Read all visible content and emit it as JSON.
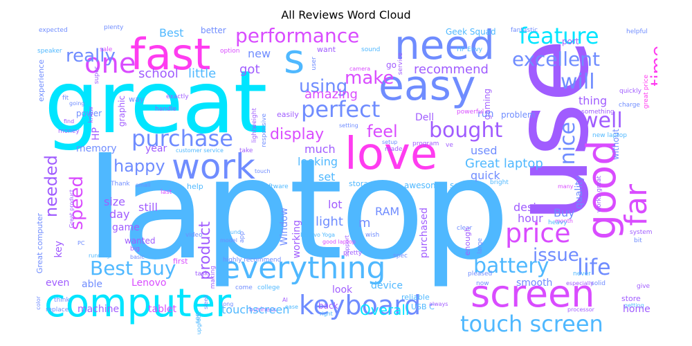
{
  "title": "All Reviews Word Cloud",
  "palette": [
    "#00e5ff",
    "#4fb8ff",
    "#6f8cff",
    "#a05cff",
    "#d94cff",
    "#ff3cf0"
  ],
  "words": {
    "laptop": "laptop",
    "great": "great",
    "use": "use",
    "computer": "computer",
    "love": "love",
    "need": "need",
    "easy": "easy",
    "fast": "fast",
    "work": "work",
    "screen": "screen",
    "good": "good",
    "everything": "everything",
    "keyboard": "keyboard",
    "touch_screen": "touch screen",
    "s": "s",
    "one": "one",
    "far": "far",
    "perfect": "perfect",
    "purchase": "purchase",
    "performance": "performance",
    "feature": "feature",
    "excellent": "excellent",
    "price": "price",
    "Best_Buy": "Best Buy",
    "battery": "battery",
    "life": "life",
    "bought": "bought",
    "well": "well",
    "time": "time",
    "nice": "nice",
    "will": "will",
    "really": "really",
    "make": "make",
    "using": "using",
    "happy": "happy",
    "speed": "speed",
    "needed": "needed",
    "display": "display",
    "issue": "issue",
    "Great_laptop": "Great laptop",
    "product": "product",
    "feel": "feel",
    "amazing": "amazing",
    "recommend": "recommend",
    "school": "school",
    "little": "little",
    "got": "got",
    "new": "new",
    "Best": "Best",
    "better": "better",
    "Geek_Squad": "Geek Squad",
    "fantastic": "fantastic",
    "helpful": "helpful",
    "port": "port",
    "expected": "expected",
    "plenty": "plenty",
    "speaker": "speaker",
    "sale": "sale",
    "option": "option",
    "sound": "sound",
    "camera": "camera",
    "service": "service",
    "HP_Envy": "HP Envy",
    "great_price": "great price",
    "want": "want",
    "user": "user",
    "go": "go",
    "thing": "thing",
    "gaming": "gaming",
    "quickly": "quickly",
    "charge": "charge",
    "something": "something",
    "experience": "experience",
    "super": "super",
    "fit": "fit",
    "going": "going",
    "power": "power",
    "way": "way",
    "handle": "handle",
    "exactly": "exactly",
    "graphic": "graphic",
    "Dell": "Dell",
    "run": "run",
    "problem": "problem",
    "powerful": "powerful",
    "without": "without",
    "know": "know",
    "find": "find",
    "money": "money",
    "lightweight": "lightweight",
    "easily": "easily",
    "responsive": "responsive",
    "setting": "setting",
    "setup": "setup",
    "program": "program",
    "made": "made",
    "ve": "ve",
    "new_laptop": "new laptop",
    "memory": "memory",
    "HP": "HP",
    "year": "year",
    "customer_service": "customer service",
    "take": "take",
    "much": "much",
    "used": "used",
    "quality": "quality",
    "looking": "looking",
    "works_great": "works great",
    "many": "many",
    "quick": "quick",
    "set": "set",
    "touch": "touch",
    "storage": "storage",
    "awesome": "awesome",
    "seem": "seem",
    "bright": "bright",
    "Thank": "Thank",
    "small": "small",
    "last": "last",
    "help": "help",
    "software": "software",
    "Great_product": "Great product",
    "size": "size",
    "day": "day",
    "still": "still",
    "Window": "Window",
    "working": "working",
    "light": "light",
    "lot": "lot",
    "RAM": "RAM",
    "m": "m",
    "design": "design",
    "purchased": "purchased",
    "Buy": "Buy",
    "hour": "hour",
    "Great_computer": "Great computer",
    "game": "game",
    "wanted": "wanted",
    "key": "key",
    "around": "around",
    "model": "model",
    "app": "app",
    "support": "support",
    "video": "video",
    "Lenovo_Yoga": "Lenovo Yoga",
    "good_laptop": "good laptop",
    "wish": "wish",
    "clear": "clear",
    "enough": "enough",
    "month": "month",
    "heavy": "heavy",
    "system": "system",
    "bit": "bit",
    "large": "large",
    "PC": "PC",
    "big": "big",
    "running": "running",
    "basic": "basic",
    "first": "first",
    "highly_recommend": "highly recommend",
    "pretty": "pretty",
    "spec": "spec",
    "even": "even",
    "able": "able",
    "Lenovo": "Lenovo",
    "task": "task",
    "making": "making",
    "look": "look",
    "device": "device",
    "smooth": "smooth",
    "solid": "solid",
    "never": "never",
    "especially": "especially",
    "give": "give",
    "pleased": "pleased",
    "come": "come",
    "college": "college",
    "reliable": "reliable",
    "USB_C": "USB C",
    "now": "now",
    "store": "store",
    "getting": "getting",
    "think": "think",
    "sleek": "sleek",
    "long": "long",
    "AI": "AI",
    "ease": "ease",
    "business": "business",
    "color": "color",
    "machine": "machine",
    "tablet": "tablet",
    "touchscreen": "touchscreen",
    "upgrade": "upgrade",
    "back": "back",
    "Overall": "Overall",
    "always": "always",
    "home": "home",
    "processor": "processor",
    "replace": "replace",
    "see": "see",
    "right": "right"
  }
}
